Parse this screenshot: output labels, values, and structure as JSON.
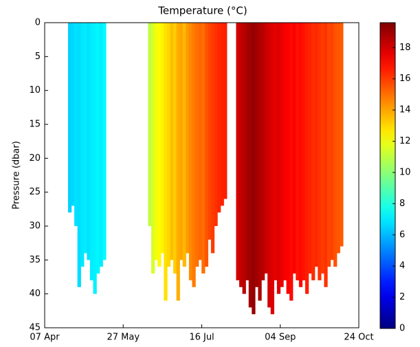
{
  "chart_data": {
    "type": "strip",
    "title": "Temperature (°C)",
    "y_label": "Pressure (dbar)",
    "x": [
      "23 Apr",
      "25 Apr",
      "27 Apr",
      "29 Apr",
      "01 May",
      "03 May",
      "05 May",
      "07 May",
      "09 May",
      "11 May",
      "13 May",
      "15 May",
      "13 Jun",
      "15 Jun",
      "17 Jun",
      "19 Jun",
      "21 Jun",
      "23 Jun",
      "25 Jun",
      "27 Jun",
      "29 Jun",
      "01 Jul",
      "03 Jul",
      "05 Jul",
      "07 Jul",
      "09 Jul",
      "11 Jul",
      "13 Jul",
      "15 Jul",
      "17 Jul",
      "19 Jul",
      "21 Jul",
      "23 Jul",
      "25 Jul",
      "27 Jul",
      "29 Jul",
      "31 Jul",
      "08 Aug",
      "10 Aug",
      "12 Aug",
      "14 Aug",
      "16 Aug",
      "18 Aug",
      "20 Aug",
      "22 Aug",
      "24 Aug",
      "26 Aug",
      "28 Aug",
      "30 Aug",
      "01 Sep",
      "03 Sep",
      "05 Sep",
      "07 Sep",
      "09 Sep",
      "11 Sep",
      "13 Sep",
      "15 Sep",
      "17 Sep",
      "19 Sep",
      "21 Sep",
      "23 Sep",
      "25 Sep",
      "27 Sep",
      "29 Sep",
      "01 Oct",
      "03 Oct",
      "05 Oct",
      "07 Oct",
      "09 Oct",
      "11 Oct",
      "13 Oct"
    ],
    "depth": [
      28,
      27,
      30,
      39,
      36,
      34,
      35,
      38,
      40,
      37,
      36,
      35,
      30,
      37,
      35,
      36,
      34,
      41,
      36,
      35,
      37,
      41,
      35,
      36,
      34,
      38,
      39,
      36,
      35,
      37,
      36,
      32,
      34,
      30,
      28,
      27,
      26,
      38,
      39,
      40,
      38,
      42,
      43,
      39,
      41,
      38,
      37,
      42,
      43,
      38,
      40,
      39,
      38,
      40,
      41,
      37,
      38,
      39,
      38,
      40,
      37,
      38,
      36,
      38,
      37,
      39,
      36,
      35,
      36,
      34,
      33
    ],
    "values": [
      6.5,
      6.6,
      6.8,
      6.7,
      6.9,
      7.0,
      6.8,
      7.0,
      7.1,
      7.2,
      7.0,
      7.3,
      11.0,
      11.5,
      12.0,
      12.3,
      12.5,
      12.8,
      13.0,
      13.5,
      13.2,
      13.8,
      14.0,
      13.6,
      14.2,
      14.5,
      14.8,
      15.0,
      15.2,
      15.0,
      15.5,
      15.8,
      16.0,
      16.2,
      16.4,
      16.5,
      16.6,
      18.0,
      18.3,
      18.5,
      18.8,
      19.0,
      19.2,
      19.0,
      18.7,
      18.5,
      18.2,
      18.0,
      17.8,
      17.6,
      17.8,
      17.5,
      17.3,
      17.2,
      17.0,
      17.2,
      16.8,
      17.0,
      16.8,
      16.6,
      16.5,
      16.3,
      16.4,
      16.2,
      16.0,
      16.2,
      15.8,
      15.9,
      15.6,
      15.5,
      15.4
    ],
    "xlim": [
      "07 Apr",
      "24 Oct"
    ],
    "xticks": [
      "07 Apr",
      "27 May",
      "16 Jul",
      "04 Sep",
      "24 Oct"
    ],
    "ylim": [
      0,
      45
    ],
    "y_inverted": true,
    "yticks": [
      0,
      5,
      10,
      15,
      20,
      25,
      30,
      35,
      40,
      45
    ],
    "colormap": "jet",
    "clim": [
      0,
      19.6
    ],
    "cticks": [
      0,
      2,
      4,
      6,
      8,
      10,
      12,
      14,
      16,
      18
    ]
  }
}
